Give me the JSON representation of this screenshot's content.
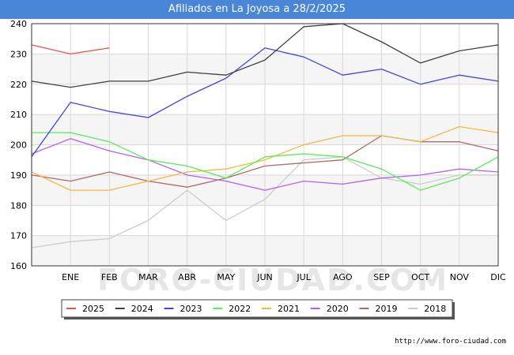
{
  "header": {
    "title": "Afiliados en La Joyosa a 28/2/2025"
  },
  "footer": {
    "url": "http://www.foro-ciudad.com"
  },
  "watermark": "FORO-CIUDAD.COM",
  "chart_data": {
    "type": "line",
    "title": "Afiliados en La Joyosa a 28/2/2025",
    "xlabel": "",
    "ylabel": "",
    "categories": [
      "",
      "ENE",
      "FEB",
      "MAR",
      "ABR",
      "MAY",
      "JUN",
      "JUL",
      "AGO",
      "SEP",
      "OCT",
      "NOV",
      "DIC"
    ],
    "ylim": [
      160,
      240
    ],
    "yticks": [
      160,
      170,
      180,
      190,
      200,
      210,
      220,
      230,
      240
    ],
    "grid": true,
    "legend_position": "bottom",
    "series": [
      {
        "name": "2025",
        "color": "#e8534f",
        "values": [
          233,
          230,
          232,
          null,
          null,
          null,
          null,
          null,
          null,
          null,
          null,
          null,
          null
        ]
      },
      {
        "name": "2024",
        "color": "#404040",
        "values": [
          221,
          219,
          221,
          221,
          224,
          223,
          228,
          239,
          240,
          234,
          227,
          231,
          233
        ]
      },
      {
        "name": "2023",
        "color": "#4444dd",
        "values": [
          196,
          214,
          211,
          209,
          216,
          222,
          232,
          229,
          223,
          225,
          220,
          223,
          221
        ]
      },
      {
        "name": "2022",
        "color": "#55ee55",
        "values": [
          204,
          204,
          201,
          195,
          193,
          189,
          196,
          197,
          196,
          192,
          185,
          189,
          196
        ]
      },
      {
        "name": "2021",
        "color": "#f5b841",
        "values": [
          191,
          185,
          185,
          188,
          191,
          192,
          195,
          200,
          203,
          203,
          201,
          206,
          204
        ]
      },
      {
        "name": "2020",
        "color": "#b660e8",
        "values": [
          197,
          202,
          198,
          195,
          190,
          188,
          185,
          188,
          187,
          189,
          190,
          192,
          191
        ]
      },
      {
        "name": "2019",
        "color": "#b06868",
        "values": [
          190,
          188,
          191,
          188,
          186,
          189,
          193,
          194,
          195,
          203,
          201,
          201,
          198
        ]
      },
      {
        "name": "2018",
        "color": "#cccccc",
        "values": [
          166,
          168,
          169,
          175,
          185,
          175,
          182,
          195,
          196,
          189,
          187,
          190,
          190
        ]
      }
    ]
  }
}
